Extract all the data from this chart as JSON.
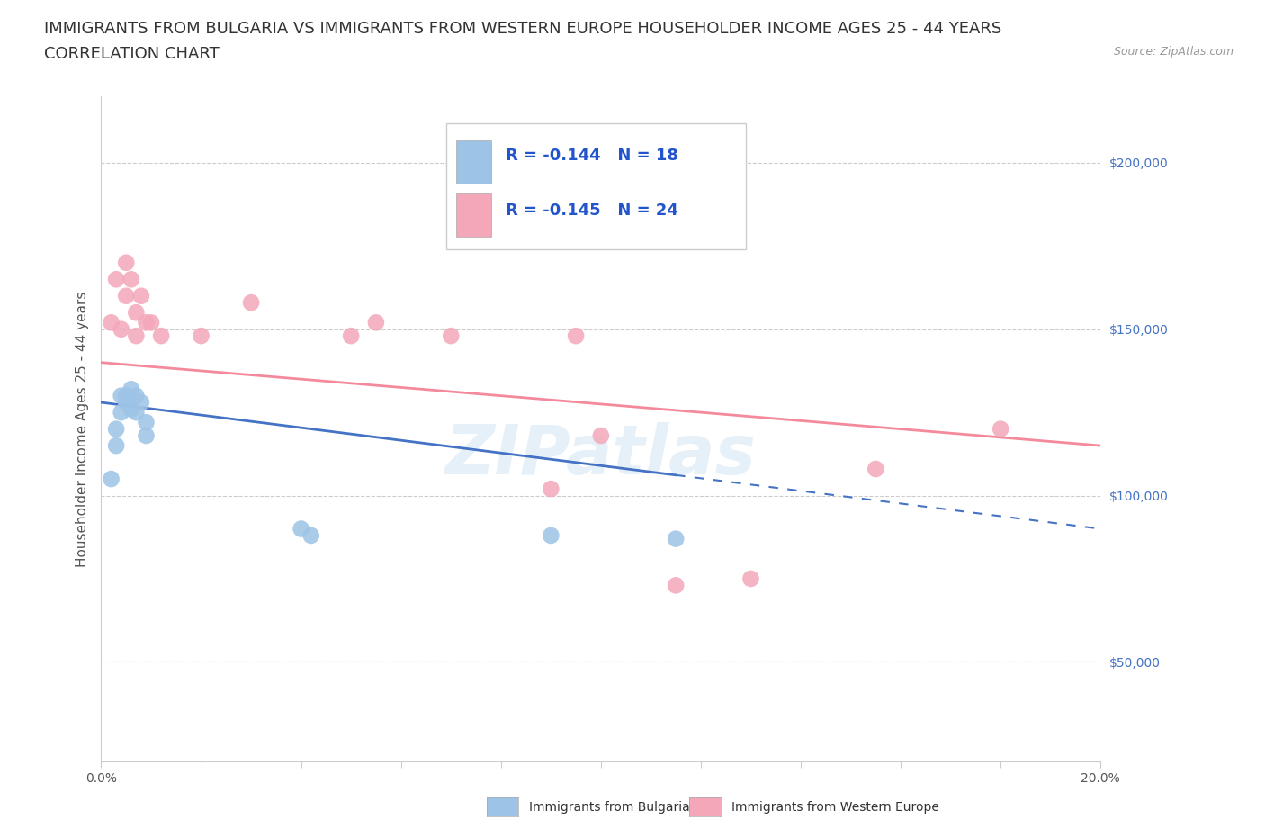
{
  "title_line1": "IMMIGRANTS FROM BULGARIA VS IMMIGRANTS FROM WESTERN EUROPE HOUSEHOLDER INCOME AGES 25 - 44 YEARS",
  "title_line2": "CORRELATION CHART",
  "source_text": "Source: ZipAtlas.com",
  "ylabel": "Householder Income Ages 25 - 44 years",
  "xlim": [
    0.0,
    0.2
  ],
  "ylim": [
    20000,
    220000
  ],
  "xticks": [
    0.0,
    0.02,
    0.04,
    0.06,
    0.08,
    0.1,
    0.12,
    0.14,
    0.16,
    0.18,
    0.2
  ],
  "ytick_positions": [
    50000,
    100000,
    150000,
    200000
  ],
  "ytick_labels": [
    "$50,000",
    "$100,000",
    "$150,000",
    "$200,000"
  ],
  "ytick_color": "#4472c4",
  "grid_color": "#cccccc",
  "watermark": "ZIPatlas",
  "bulgaria_color": "#9dc3e6",
  "western_color": "#f4a7b9",
  "bulgaria_label": "Immigrants from Bulgaria",
  "western_label": "Immigrants from Western Europe",
  "bulgaria_R": -0.144,
  "bulgaria_N": 18,
  "western_R": -0.145,
  "western_N": 24,
  "bulgaria_x": [
    0.002,
    0.003,
    0.003,
    0.004,
    0.004,
    0.005,
    0.005,
    0.006,
    0.006,
    0.007,
    0.007,
    0.008,
    0.009,
    0.009,
    0.04,
    0.042,
    0.09,
    0.115
  ],
  "bulgaria_y": [
    105000,
    120000,
    115000,
    130000,
    125000,
    130000,
    128000,
    132000,
    126000,
    130000,
    125000,
    128000,
    122000,
    118000,
    90000,
    88000,
    88000,
    87000
  ],
  "western_x": [
    0.002,
    0.003,
    0.004,
    0.005,
    0.005,
    0.006,
    0.007,
    0.007,
    0.008,
    0.009,
    0.01,
    0.012,
    0.02,
    0.03,
    0.05,
    0.055,
    0.07,
    0.09,
    0.095,
    0.1,
    0.115,
    0.13,
    0.155,
    0.18
  ],
  "western_y": [
    152000,
    165000,
    150000,
    170000,
    160000,
    165000,
    148000,
    155000,
    160000,
    152000,
    152000,
    148000,
    148000,
    158000,
    148000,
    152000,
    148000,
    102000,
    148000,
    118000,
    73000,
    75000,
    108000,
    120000
  ],
  "trendline_color_bulgaria": "#4472c4",
  "trendline_color_western": "#f4899b",
  "bulgaria_trend_x0": 0.0,
  "bulgaria_trend_y0": 128000,
  "bulgaria_trend_x1": 0.2,
  "bulgaria_trend_y1": 90000,
  "western_trend_x0": 0.0,
  "western_trend_y0": 140000,
  "western_trend_x1": 0.2,
  "western_trend_y1": 115000,
  "background_color": "#ffffff",
  "title_fontsize": 13,
  "axis_label_fontsize": 11,
  "tick_fontsize": 10,
  "legend_fontsize": 13,
  "marker_size": 180
}
